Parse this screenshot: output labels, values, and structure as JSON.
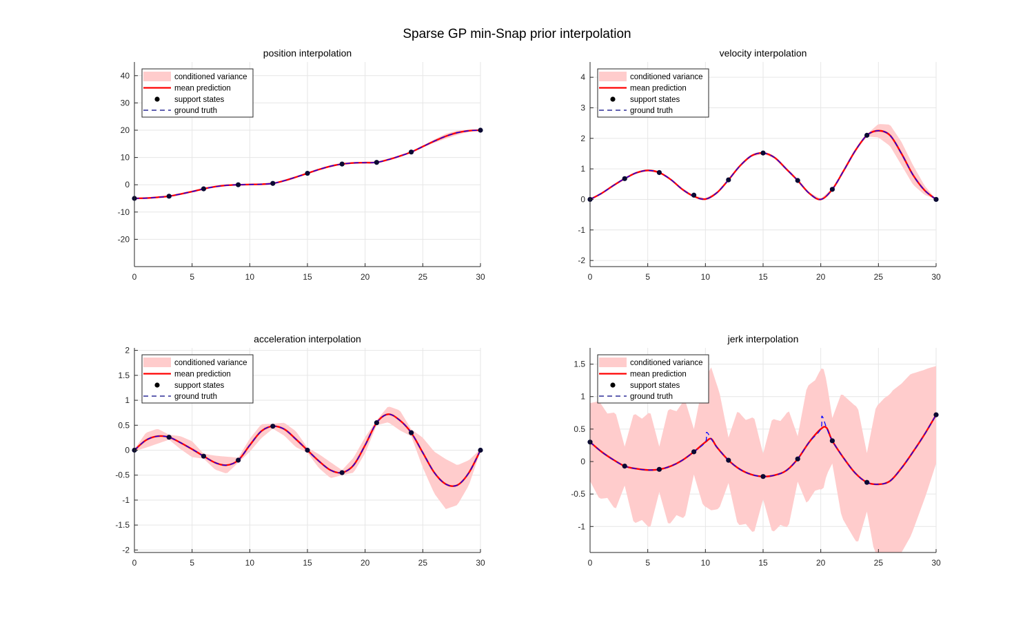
{
  "figure": {
    "title": "Sparse GP min-Snap prior interpolation"
  },
  "colors": {
    "variance": "#ffcccc",
    "mean": "#ff0000",
    "support": "#0a0a33",
    "truth": "#0000ff",
    "grid": "#e6e6e6",
    "axis": "#262626"
  },
  "legend": {
    "variance": "conditioned variance",
    "mean": "mean prediction",
    "support": "support states",
    "truth": "ground truth"
  },
  "chart_data": [
    {
      "type": "line",
      "title": "position interpolation",
      "xlim": [
        0,
        30
      ],
      "ylim": [
        -30,
        45
      ],
      "xticks": [
        0,
        5,
        10,
        15,
        20,
        25,
        30
      ],
      "yticks": [
        -20,
        -10,
        0,
        10,
        20,
        30,
        40
      ],
      "legend_position": "top-left",
      "support_x": [
        0,
        3,
        6,
        9,
        12,
        15,
        18,
        21,
        24,
        30
      ],
      "support_y": [
        -5,
        -4.2,
        -1.5,
        0,
        0.5,
        4.2,
        7.6,
        8.2,
        12,
        20
      ],
      "mean": {
        "x": [
          0,
          1,
          2,
          3,
          4,
          5,
          6,
          7,
          8,
          9,
          10,
          11,
          12,
          13,
          14,
          15,
          16,
          17,
          18,
          19,
          20,
          21,
          22,
          23,
          24,
          25,
          26,
          27,
          28,
          29,
          30
        ],
        "y": [
          -5,
          -4.9,
          -4.6,
          -4.2,
          -3.4,
          -2.5,
          -1.5,
          -0.7,
          -0.2,
          0,
          0.1,
          0.2,
          0.5,
          1.5,
          2.8,
          4.2,
          5.6,
          6.8,
          7.6,
          8.0,
          8.1,
          8.2,
          9.2,
          10.5,
          12,
          14,
          16,
          17.8,
          19.1,
          19.8,
          20
        ]
      },
      "variance_band": {
        "x": [
          0,
          6,
          12,
          18,
          21,
          24,
          25,
          26,
          27,
          28,
          29,
          30
        ],
        "half_width": [
          0,
          0.1,
          0.1,
          0.1,
          0.1,
          0.1,
          0.3,
          0.6,
          0.9,
          0.8,
          0.4,
          0
        ]
      }
    },
    {
      "type": "line",
      "title": "velocity interpolation",
      "xlim": [
        0,
        30
      ],
      "ylim": [
        -2.2,
        4.5
      ],
      "xticks": [
        0,
        5,
        10,
        15,
        20,
        25,
        30
      ],
      "yticks": [
        -2,
        -1,
        0,
        1,
        2,
        3,
        4
      ],
      "legend_position": "top-left",
      "support_x": [
        0,
        3,
        6,
        9,
        12,
        15,
        18,
        21,
        24,
        30
      ],
      "support_y": [
        0,
        0.68,
        0.88,
        0.14,
        0.64,
        1.52,
        0.62,
        0.33,
        2.1,
        0
      ],
      "mean": {
        "x": [
          0,
          1,
          2,
          3,
          4,
          5,
          6,
          7,
          8,
          9,
          10,
          11,
          12,
          13,
          14,
          15,
          16,
          17,
          18,
          19,
          20,
          21,
          22,
          23,
          24,
          25,
          26,
          27,
          28,
          29,
          30
        ],
        "y": [
          0,
          0.2,
          0.45,
          0.68,
          0.87,
          0.95,
          0.88,
          0.65,
          0.33,
          0.1,
          0.01,
          0.22,
          0.64,
          1.1,
          1.43,
          1.52,
          1.37,
          1.0,
          0.62,
          0.2,
          0,
          0.33,
          0.95,
          1.6,
          2.1,
          2.25,
          2.1,
          1.5,
          0.8,
          0.3,
          0
        ]
      },
      "variance_band": {
        "x": [
          0,
          3,
          6,
          9,
          12,
          15,
          18,
          21,
          24,
          25,
          26,
          27,
          28,
          29,
          30
        ],
        "half_width": [
          0,
          0.02,
          0.02,
          0.03,
          0.02,
          0.03,
          0.02,
          0.03,
          0.04,
          0.22,
          0.35,
          0.38,
          0.32,
          0.15,
          0
        ]
      }
    },
    {
      "type": "line",
      "title": "acceleration interpolation",
      "xlim": [
        0,
        30
      ],
      "ylim": [
        -2.05,
        2.05
      ],
      "xticks": [
        0,
        5,
        10,
        15,
        20,
        25,
        30
      ],
      "yticks": [
        -2,
        -1.5,
        -1,
        -0.5,
        0,
        0.5,
        1,
        1.5,
        2
      ],
      "legend_position": "top-left",
      "support_x": [
        0,
        3,
        6,
        9,
        12,
        15,
        18,
        21,
        24,
        30
      ],
      "support_y": [
        0,
        0.26,
        -0.12,
        -0.2,
        0.48,
        0,
        -0.45,
        0.55,
        0.35,
        0
      ],
      "mean": {
        "x": [
          0,
          1,
          2,
          3,
          4,
          5,
          6,
          7,
          8,
          9,
          10,
          11,
          12,
          13,
          14,
          15,
          16,
          17,
          18,
          19,
          20,
          21,
          22,
          23,
          24,
          25,
          26,
          27,
          28,
          29,
          30
        ],
        "y": [
          0,
          0.2,
          0.28,
          0.26,
          0.15,
          0.02,
          -0.12,
          -0.25,
          -0.3,
          -0.2,
          0.1,
          0.38,
          0.48,
          0.42,
          0.22,
          0,
          -0.22,
          -0.4,
          -0.45,
          -0.3,
          0.1,
          0.55,
          0.72,
          0.6,
          0.35,
          -0.05,
          -0.45,
          -0.68,
          -0.7,
          -0.45,
          0
        ]
      },
      "variance_band": {
        "x": [
          0,
          1,
          2,
          3,
          4,
          5,
          6,
          7,
          8,
          9,
          10,
          11,
          12,
          13,
          14,
          15,
          16,
          17,
          18,
          19,
          20,
          21,
          22,
          23,
          24,
          25,
          26,
          27,
          28,
          29,
          30
        ],
        "half_width": [
          0.02,
          0.15,
          0.15,
          0.05,
          0.13,
          0.16,
          0.05,
          0.14,
          0.17,
          0.05,
          0.13,
          0.14,
          0.05,
          0.13,
          0.16,
          0.05,
          0.14,
          0.16,
          0.05,
          0.15,
          0.16,
          0.05,
          0.16,
          0.2,
          0.07,
          0.3,
          0.42,
          0.5,
          0.4,
          0.25,
          0.02
        ]
      }
    },
    {
      "type": "line",
      "title": "jerk interpolation",
      "xlim": [
        0,
        30
      ],
      "ylim": [
        -1.4,
        1.75
      ],
      "xticks": [
        0,
        5,
        10,
        15,
        20,
        25,
        30
      ],
      "yticks": [
        -1,
        -0.5,
        0,
        0.5,
        1,
        1.5
      ],
      "legend_position": "top-left",
      "support_x": [
        0,
        3,
        6,
        9,
        12,
        15,
        18,
        21,
        24,
        30
      ],
      "support_y": [
        0.3,
        -0.07,
        -0.12,
        0.15,
        0.02,
        -0.23,
        0.04,
        0.32,
        -0.32,
        0.72
      ],
      "mean": {
        "x": [
          0,
          1,
          2,
          3,
          4,
          5,
          6,
          7,
          8,
          9,
          10,
          10.5,
          11,
          12,
          13,
          14,
          15,
          16,
          17,
          18,
          19,
          20,
          20.5,
          21,
          22,
          23,
          24,
          25,
          26,
          27,
          28,
          29,
          30
        ],
        "y": [
          0.3,
          0.15,
          0.03,
          -0.07,
          -0.11,
          -0.13,
          -0.12,
          -0.07,
          0.02,
          0.15,
          0.3,
          0.35,
          0.22,
          0.02,
          -0.12,
          -0.2,
          -0.23,
          -0.21,
          -0.14,
          0.04,
          0.3,
          0.5,
          0.52,
          0.32,
          0.05,
          -0.18,
          -0.32,
          -0.35,
          -0.3,
          -0.1,
          0.15,
          0.42,
          0.72
        ]
      },
      "truth_peaks": [
        {
          "x": 10.1,
          "y": 0.45
        },
        {
          "x": 20.1,
          "y": 0.7
        }
      ],
      "variance_band": {
        "x": [
          0,
          0.8,
          1.5,
          2.2,
          3,
          3.8,
          4.5,
          5.2,
          6,
          6.8,
          7.5,
          8.2,
          9,
          9.8,
          10.5,
          11.2,
          12,
          12.8,
          13.5,
          14.2,
          15,
          15.8,
          16.5,
          17.2,
          18,
          18.8,
          19.5,
          20.2,
          21,
          21.8,
          22.5,
          23.2,
          24,
          24.8,
          25.5,
          26.2,
          27,
          27.8,
          28.5,
          29.2,
          30
        ],
        "half_width": [
          0.6,
          0.75,
          0.65,
          0.75,
          0.3,
          0.85,
          0.78,
          0.9,
          0.35,
          0.9,
          0.8,
          0.92,
          0.35,
          0.95,
          1.1,
          0.9,
          0.35,
          0.88,
          0.8,
          0.9,
          0.35,
          0.88,
          0.8,
          0.9,
          0.35,
          0.9,
          0.85,
          0.95,
          0.35,
          0.95,
          1.0,
          1.05,
          0.45,
          1.2,
          1.3,
          1.35,
          1.3,
          1.25,
          1.1,
          0.95,
          0.75
        ]
      }
    }
  ]
}
